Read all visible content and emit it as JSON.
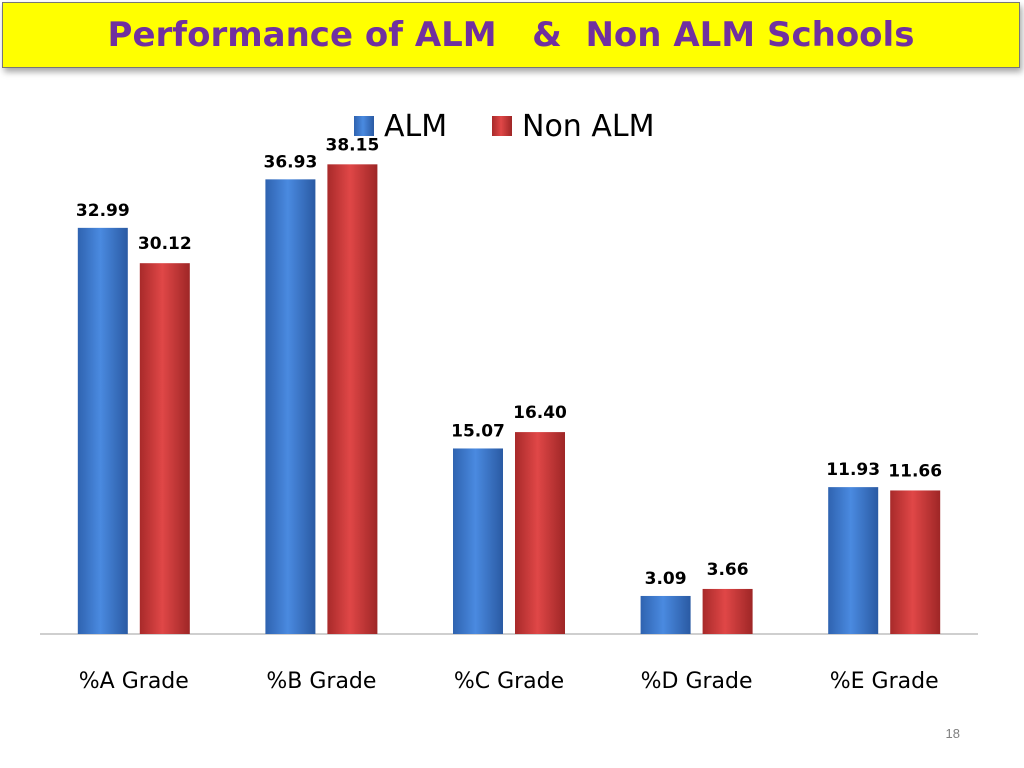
{
  "slide": {
    "title": "Performance of ALM   &  Non ALM Schools",
    "page_number": "18"
  },
  "colors": {
    "title_background": "#ffff00",
    "title_text": "#7030a0",
    "alm_bar": "#3f7fd6",
    "non_alm_bar": "#d43f3f"
  },
  "chart_data": {
    "type": "bar",
    "title": "",
    "xlabel": "",
    "ylabel": "",
    "categories": [
      "%A Grade",
      "%B Grade",
      "%C Grade",
      "%D Grade",
      "%E Grade"
    ],
    "series": [
      {
        "name": "ALM",
        "values": [
          32.99,
          36.93,
          15.07,
          3.09,
          11.93
        ],
        "labels": [
          "32.99",
          "36.93",
          "15.07",
          "3.09",
          "11.93"
        ]
      },
      {
        "name": "Non ALM",
        "values": [
          30.12,
          38.15,
          16.4,
          3.66,
          11.66
        ],
        "labels": [
          "30.12",
          "38.15",
          "16.40",
          "3.66",
          "11.66"
        ]
      }
    ],
    "ylim": [
      0,
      45
    ],
    "grid": false,
    "legend_position": "top-center"
  }
}
